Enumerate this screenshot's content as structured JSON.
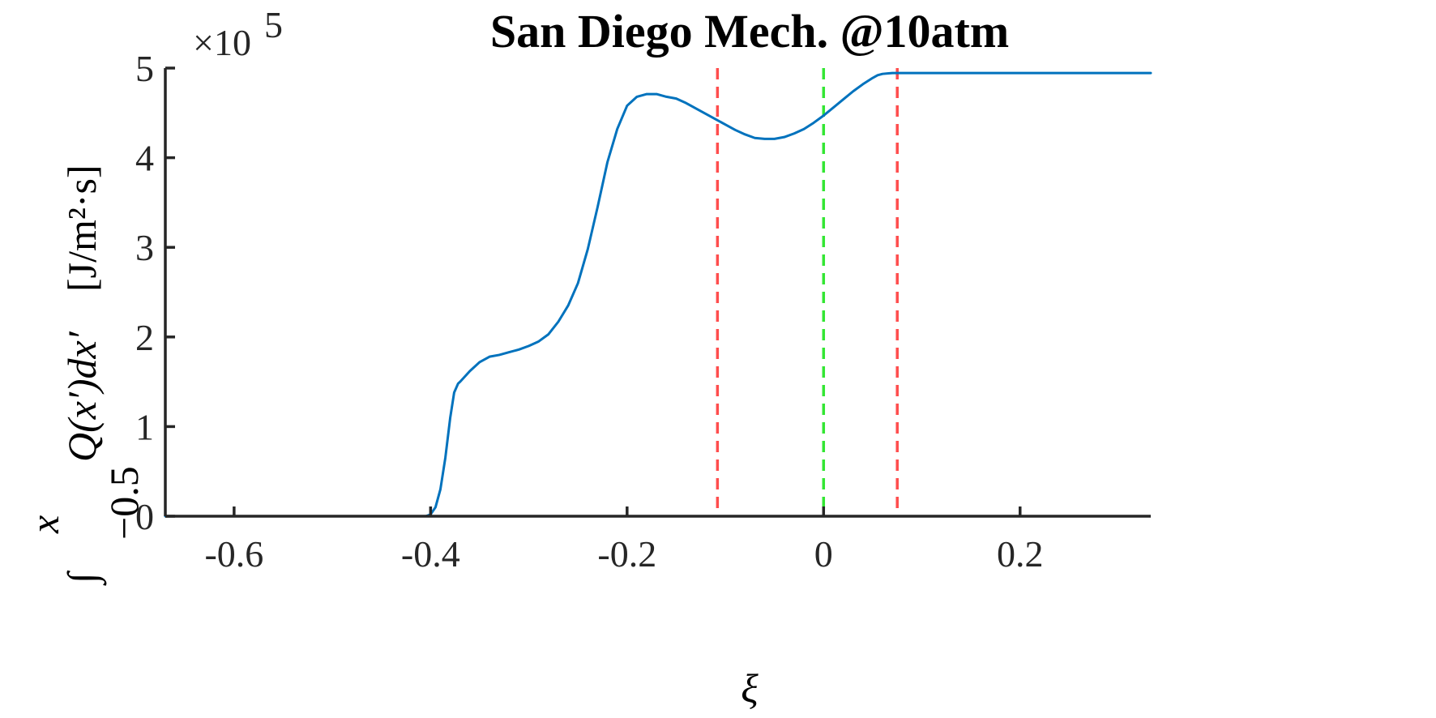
{
  "chart_data": {
    "type": "line",
    "title": "San Diego Mech. @10atm",
    "xlabel": "ξ",
    "ylabel": {
      "integral": "∫",
      "upper_limit": "x",
      "lower_limit": "−0.5",
      "integrand": "Q(x′)dx′",
      "units": "[J/m²·s]"
    },
    "y_multiplier": {
      "base": "×10",
      "exponent": "5"
    },
    "xlim": [
      -0.67,
      0.333
    ],
    "ylim": [
      0,
      5
    ],
    "x_ticks": [
      {
        "value": -0.6,
        "label": "-0.6"
      },
      {
        "value": -0.4,
        "label": "-0.4"
      },
      {
        "value": -0.2,
        "label": "-0.2"
      },
      {
        "value": 0,
        "label": "0"
      },
      {
        "value": 0.2,
        "label": "0.2"
      }
    ],
    "y_ticks": [
      {
        "value": 0,
        "label": "0"
      },
      {
        "value": 1,
        "label": "1"
      },
      {
        "value": 2,
        "label": "2"
      },
      {
        "value": 3,
        "label": "3"
      },
      {
        "value": 4,
        "label": "4"
      },
      {
        "value": 5,
        "label": "5"
      }
    ],
    "grid": false,
    "series": [
      {
        "color": "#0072BD",
        "x": [
          -0.67,
          -0.6,
          -0.5,
          -0.42,
          -0.405,
          -0.4,
          -0.395,
          -0.39,
          -0.385,
          -0.38,
          -0.376,
          -0.372,
          -0.37,
          -0.365,
          -0.36,
          -0.35,
          -0.34,
          -0.33,
          -0.32,
          -0.31,
          -0.3,
          -0.29,
          -0.28,
          -0.27,
          -0.26,
          -0.25,
          -0.24,
          -0.23,
          -0.22,
          -0.21,
          -0.2,
          -0.19,
          -0.18,
          -0.17,
          -0.16,
          -0.15,
          -0.14,
          -0.13,
          -0.12,
          -0.11,
          -0.1,
          -0.09,
          -0.08,
          -0.07,
          -0.06,
          -0.05,
          -0.04,
          -0.03,
          -0.02,
          -0.01,
          0.0,
          0.01,
          0.02,
          0.03,
          0.04,
          0.05,
          0.055,
          0.06,
          0.065,
          0.07,
          0.075,
          0.08,
          0.1,
          0.15,
          0.2,
          0.25,
          0.3,
          0.333
        ],
        "y": [
          0,
          0,
          0,
          0,
          0.0,
          0.02,
          0.1,
          0.3,
          0.65,
          1.1,
          1.38,
          1.48,
          1.5,
          1.56,
          1.62,
          1.72,
          1.78,
          1.8,
          1.83,
          1.86,
          1.9,
          1.95,
          2.03,
          2.17,
          2.35,
          2.6,
          2.98,
          3.45,
          3.95,
          4.32,
          4.58,
          4.68,
          4.71,
          4.71,
          4.68,
          4.66,
          4.61,
          4.55,
          4.49,
          4.43,
          4.37,
          4.31,
          4.26,
          4.22,
          4.21,
          4.21,
          4.23,
          4.27,
          4.32,
          4.39,
          4.47,
          4.56,
          4.65,
          4.74,
          4.82,
          4.89,
          4.92,
          4.935,
          4.94,
          4.945,
          4.945,
          4.945,
          4.945,
          4.945,
          4.945,
          4.945,
          4.945,
          4.945
        ]
      }
    ],
    "vertical_lines": [
      {
        "x": -0.108,
        "color": "#FF4D4D",
        "style": "dashed"
      },
      {
        "x": 0.0,
        "color": "#33E633",
        "style": "dashed"
      },
      {
        "x": 0.075,
        "color": "#FF4D4D",
        "style": "dashed"
      }
    ]
  }
}
